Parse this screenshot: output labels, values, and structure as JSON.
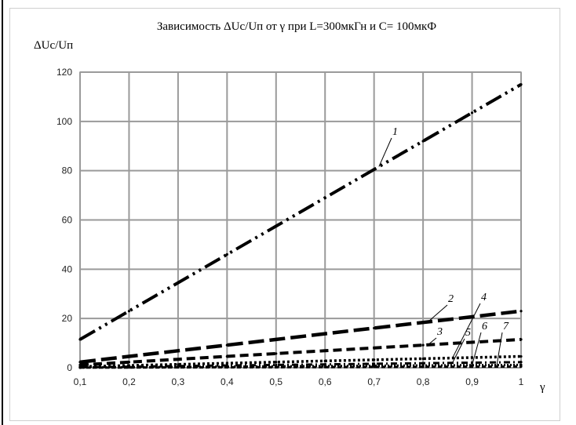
{
  "chart_data": {
    "type": "line",
    "title": "Зависимость  ΔUc/Uп от γ при L=300мкГн и C= 100мкФ",
    "ylabel": "ΔUc/Uп",
    "xlabel": "γ",
    "x": [
      0.1,
      0.2,
      0.3,
      0.4,
      0.5,
      0.6,
      0.7,
      0.8,
      0.9,
      1.0
    ],
    "xtick_labels": [
      "0,1",
      "0,2",
      "0,3",
      "0,4",
      "0,5",
      "0,6",
      "0,7",
      "0,8",
      "0,9",
      "1"
    ],
    "ytick_labels": [
      "0",
      "20",
      "40",
      "60",
      "80",
      "100",
      "120"
    ],
    "xlim": [
      0.1,
      1.0
    ],
    "ylim": [
      0,
      120
    ],
    "grid": true,
    "series": [
      {
        "name": "1",
        "values": [
          11.5,
          23,
          34.5,
          46,
          57.5,
          69,
          80.5,
          92,
          103.5,
          115
        ]
      },
      {
        "name": "2",
        "values": [
          2.3,
          4.6,
          6.9,
          9.2,
          11.5,
          13.8,
          16.1,
          18.4,
          20.7,
          23
        ]
      },
      {
        "name": "3",
        "values": [
          1.15,
          2.3,
          3.45,
          4.6,
          5.75,
          6.9,
          8.05,
          9.2,
          10.35,
          11.5
        ]
      },
      {
        "name": "4",
        "values": [
          0.46,
          0.92,
          1.38,
          1.84,
          2.3,
          2.76,
          3.22,
          3.68,
          4.14,
          4.6
        ]
      },
      {
        "name": "5",
        "values": [
          0.23,
          0.46,
          0.69,
          0.92,
          1.15,
          1.38,
          1.61,
          1.84,
          2.07,
          2.3
        ]
      },
      {
        "name": "6",
        "values": [
          0.12,
          0.23,
          0.35,
          0.46,
          0.58,
          0.69,
          0.81,
          0.92,
          1.04,
          1.15
        ]
      },
      {
        "name": "7",
        "values": [
          0.05,
          0.1,
          0.15,
          0.2,
          0.25,
          0.3,
          0.35,
          0.4,
          0.45,
          0.5
        ]
      }
    ]
  }
}
